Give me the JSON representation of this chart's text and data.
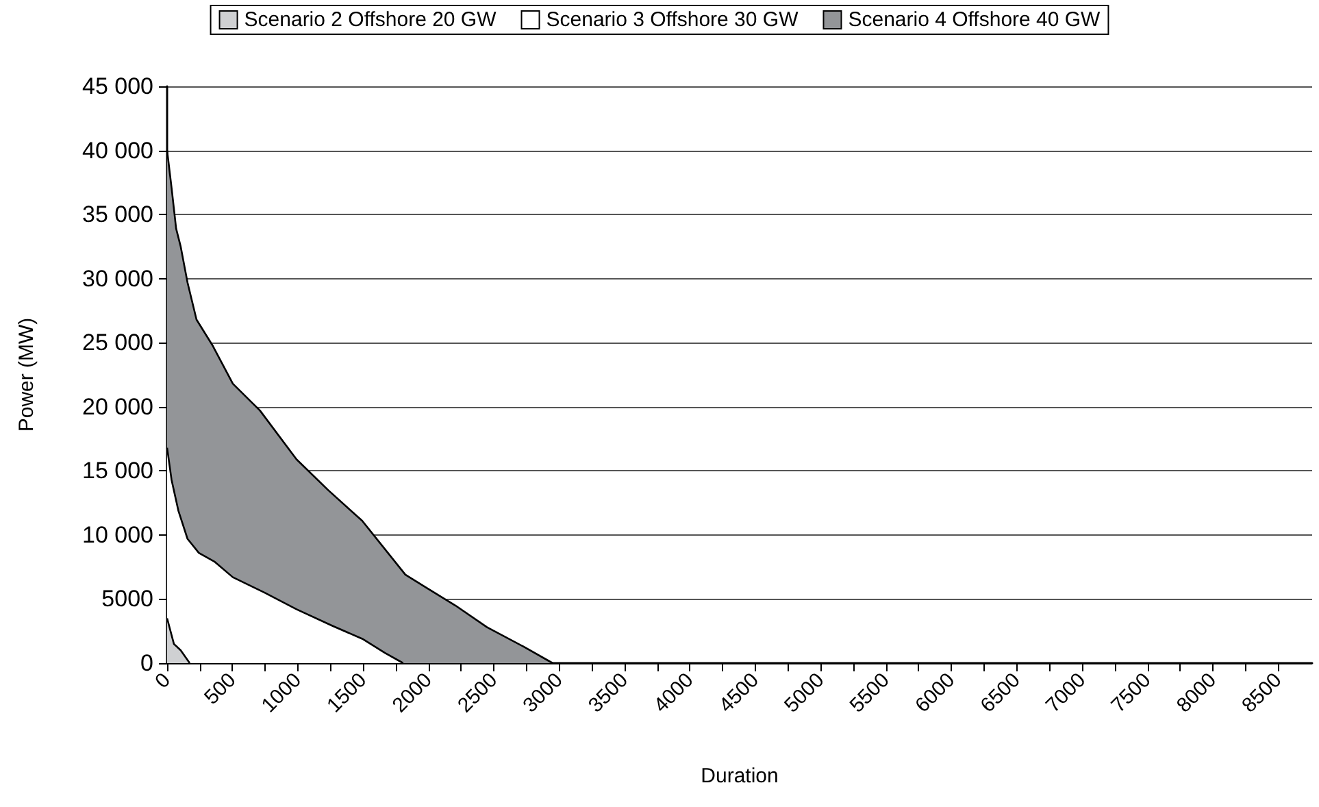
{
  "chart_data": {
    "type": "area",
    "xlabel": "Duration",
    "ylabel": "Power (MW)",
    "legend": "top",
    "grid": "y",
    "marker": "none",
    "xlim": [
      0,
      8760
    ],
    "xticks": [
      0,
      {
        "value": 250,
        "label": null
      },
      500,
      {
        "value": 750,
        "label": null
      },
      1000,
      {
        "value": 1250,
        "label": null
      },
      1500,
      {
        "value": 1750,
        "label": null
      },
      2000,
      {
        "value": 2250,
        "label": null
      },
      2500,
      {
        "value": 2750,
        "label": null
      },
      3000,
      {
        "value": 3250,
        "label": null
      },
      3500,
      {
        "value": 3750,
        "label": null
      },
      4000,
      {
        "value": 4250,
        "label": null
      },
      4500,
      {
        "value": 4750,
        "label": null
      },
      5000,
      {
        "value": 5250,
        "label": null
      },
      5500,
      {
        "value": 5750,
        "label": null
      },
      6000,
      {
        "value": 6250,
        "label": null
      },
      6500,
      {
        "value": 6750,
        "label": null
      },
      7000,
      {
        "value": 7250,
        "label": null
      },
      7500,
      {
        "value": 7750,
        "label": null
      },
      8000,
      {
        "value": 8250,
        "label": null
      },
      8500
    ],
    "ylim": [
      0,
      45000
    ],
    "yticks": [
      0,
      5000,
      {
        "value": 10000,
        "label": "10 000"
      },
      {
        "value": 15000,
        "label": "15 000"
      },
      {
        "value": 20000,
        "label": "20 000"
      },
      {
        "value": 25000,
        "label": "25 000"
      },
      {
        "value": 30000,
        "label": "30 000"
      },
      {
        "value": 35000,
        "label": "35 000"
      },
      {
        "value": 40000,
        "label": "40 000"
      },
      {
        "value": 45000,
        "label": "45 000"
      }
    ],
    "series": [
      {
        "name": "Scenario 2 Offshore 20 GW",
        "color": "#cfd0d2",
        "x": [
          0,
          52,
          104,
          173
        ],
        "values": [
          3500,
          1500,
          1000,
          0
        ]
      },
      {
        "name": "Scenario 3 Offshore 30 GW",
        "color": "#ffffff",
        "x": [
          0,
          34,
          86,
          156,
          243,
          365,
          503,
          746,
          990,
          1267,
          1493,
          1667,
          1806
        ],
        "values": [
          16800,
          14300,
          11900,
          9700,
          8600,
          7900,
          6700,
          5500,
          4200,
          2900,
          1900,
          800,
          0
        ]
      },
      {
        "name": "Scenario 4 Offshore 40 GW",
        "color": "#939598",
        "x": [
          0,
          34,
          69,
          104,
          156,
          225,
          347,
          503,
          711,
          990,
          1232,
          1493,
          1823,
          1996,
          2205,
          2448,
          2725,
          2950
        ],
        "values": [
          40000,
          37100,
          33900,
          32500,
          29700,
          26800,
          24800,
          21800,
          19700,
          15900,
          13500,
          11100,
          6900,
          5800,
          4500,
          2800,
          1300,
          0
        ]
      }
    ]
  }
}
